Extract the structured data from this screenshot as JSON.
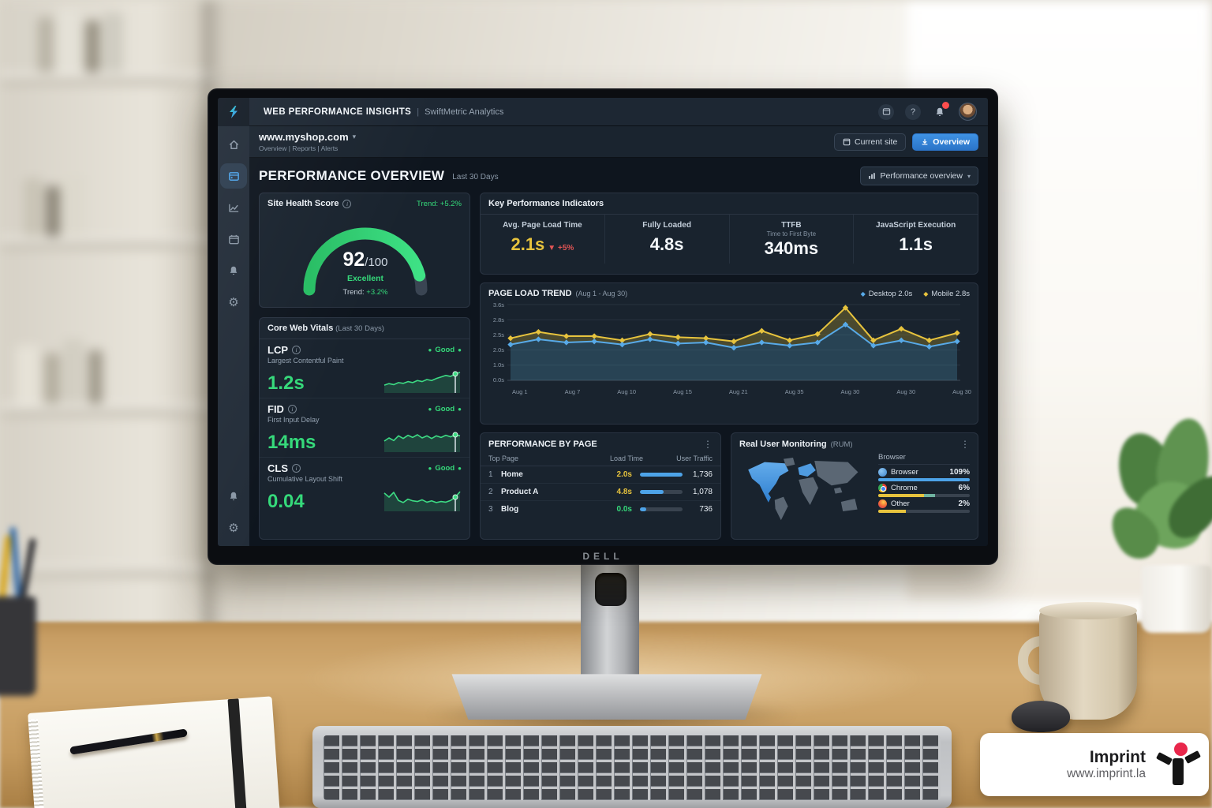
{
  "colors": {
    "accent_blue": "#4da3e8",
    "accent_green": "#35d97a",
    "accent_yellow": "#e7c33d",
    "alert_red": "#e25555",
    "panel_bg": "#19232e",
    "screen_bg": "#0e151e",
    "button_blue": "#2f86d6"
  },
  "scene": {
    "monitor_brand": "DELL",
    "imprint": {
      "title": "Imprint",
      "url": "www.imprint.la"
    }
  },
  "app": {
    "topbar": {
      "title": "WEB PERFORMANCE INSIGHTS",
      "divider": "|",
      "subtitle": "SwiftMetric Analytics",
      "icons": [
        "app-window",
        "help",
        "notifications",
        "avatar"
      ],
      "help_glyph": "?"
    },
    "sitebar": {
      "site": "www.myshop.com",
      "caret": "▾",
      "nav": "Overview | Reports | Alerts",
      "current_site": "Current site",
      "overview": "Overview"
    },
    "sidebar": {
      "items": [
        "home",
        "dashboard",
        "analytics",
        "calendar",
        "notifications",
        "settings"
      ],
      "bottom": [
        "alerts",
        "settings"
      ],
      "active": "dashboard"
    },
    "header": {
      "title": "PERFORMANCE OVERVIEW",
      "range": "Last 30 Days",
      "view": "Performance overview",
      "view_caret": "▾"
    },
    "health": {
      "title": "Site Health Score",
      "trend_top": "Trend: +5.2%",
      "score": "92",
      "max": "/100",
      "rating": "Excellent",
      "trend_bottom_label": "Trend:",
      "trend_bottom_value": "+3.2%"
    },
    "kpi": {
      "title": "Key Performance Indicators",
      "items": [
        {
          "label": "Avg. Page Load Time",
          "value": "2.1s",
          "delta": "▼ +5%"
        },
        {
          "label": "Fully Loaded",
          "value": "4.8s"
        },
        {
          "label": "TTFB",
          "sub": "Time to First Byte",
          "value": "340ms"
        },
        {
          "label": "JavaScript Execution",
          "value": "1.1s"
        }
      ]
    },
    "cwv": {
      "title": "Core Web Vitals",
      "range": "(Last 30 Days)",
      "items": [
        {
          "code": "LCP",
          "name": "Largest Contentful Paint",
          "value": "1.2s",
          "status": "Good"
        },
        {
          "code": "FID",
          "name": "First Input Delay",
          "value": "14ms",
          "status": "Good"
        },
        {
          "code": "CLS",
          "name": "Cumulative Layout Shift",
          "value": "0.04",
          "status": "Good"
        }
      ]
    },
    "pbp": {
      "title": "PERFORMANCE BY PAGE",
      "menu": "⋮",
      "cols": [
        "Top Page",
        "Load Time",
        "User Traffic"
      ],
      "rows": [
        {
          "rank": "1",
          "name": "Home",
          "load": "2.0s",
          "load_color": "#e7c33d",
          "traffic": "1,736",
          "bar": 1.0
        },
        {
          "rank": "2",
          "name": "Product A",
          "load": "4.8s",
          "load_color": "#e7c33d",
          "traffic": "1,078",
          "bar": 0.55
        },
        {
          "rank": "3",
          "name": "Blog",
          "load": "0.0s",
          "load_color": "#35d97a",
          "traffic": "736",
          "bar": 0.14
        }
      ]
    },
    "rum": {
      "title": "Real User Monitoring",
      "suffix": "(RUM)",
      "menu": "⋮",
      "col": "Browser",
      "rows": [
        {
          "icon": "globe-icon",
          "name": "Browser",
          "pct": "109%",
          "segments": [
            {
              "color": "#4da3e8",
              "w": 1.0
            }
          ]
        },
        {
          "icon": "chrome-icon",
          "name": "Chrome",
          "pct": "6%",
          "segments": [
            {
              "color": "#e7c33d",
              "w": 0.5
            },
            {
              "color": "#6fb3a0",
              "w": 0.12
            }
          ]
        },
        {
          "icon": "firefox-icon",
          "name": "Other",
          "pct": "2%",
          "segments": [
            {
              "color": "#e7c33d",
              "w": 0.3
            }
          ]
        }
      ]
    }
  },
  "chart_data": [
    {
      "id": "page_load_trend",
      "type": "line",
      "title": "PAGE LOAD TREND",
      "subtitle": "(Aug 1 - Aug 30)",
      "x_ticks": [
        "Aug 1",
        "Aug 7",
        "Aug 10",
        "Aug 15",
        "Aug 21",
        "Aug 35",
        "Aug 30",
        "Aug 30",
        "Aug 30"
      ],
      "y_ticks": [
        "3.6s",
        "2.8s",
        "2.5s",
        "2.0s",
        "1.0s",
        "0.0s"
      ],
      "ylim": [
        0,
        3.6
      ],
      "grid": true,
      "legend_position": "top-right",
      "series": [
        {
          "name": "Desktop",
          "legend": "Desktop 2.0s",
          "color": "#58aae8",
          "fill": "rgba(70,130,155,0.35)",
          "values": [
            1.7,
            1.95,
            1.8,
            1.85,
            1.7,
            1.95,
            1.75,
            1.8,
            1.55,
            1.8,
            1.65,
            1.8,
            2.65,
            1.65,
            1.9,
            1.6,
            1.85
          ]
        },
        {
          "name": "Mobile",
          "legend": "Mobile 2.8s",
          "color": "#e7c33d",
          "fill": "rgba(165,145,45,0.35)",
          "values": [
            2.0,
            2.3,
            2.1,
            2.1,
            1.9,
            2.2,
            2.05,
            2.0,
            1.85,
            2.35,
            1.9,
            2.2,
            3.45,
            1.9,
            2.45,
            1.9,
            2.25
          ]
        }
      ]
    },
    {
      "id": "site_health_gauge",
      "type": "gauge",
      "value": 92,
      "max": 100,
      "label": "Excellent",
      "color": "#2ed06e",
      "track": "#3a4553"
    },
    {
      "id": "lcp_spark",
      "type": "area",
      "color": "#3ddc84",
      "values": [
        3,
        3.6,
        3.2,
        4,
        3.7,
        4.4,
        4.0,
        4.8,
        4.4,
        5.2,
        4.8,
        5.6,
        6.2,
        6.8,
        6.4,
        7.4,
        8.0
      ]
    },
    {
      "id": "fid_spark",
      "type": "area",
      "color": "#3ddc84",
      "values": [
        5,
        5.6,
        5.1,
        6,
        5.5,
        6.1,
        5.7,
        6.2,
        5.6,
        6.0,
        5.5,
        6.0,
        5.7,
        6.1,
        5.8,
        6.2,
        6.0
      ]
    },
    {
      "id": "cls_spark",
      "type": "area",
      "color": "#3ddc84",
      "values": [
        6.4,
        5.2,
        6.6,
        4.2,
        3.6,
        4.6,
        4.1,
        3.9,
        4.4,
        3.7,
        4.1,
        3.6,
        3.9,
        3.7,
        4.2,
        5.2,
        6.8
      ]
    }
  ]
}
